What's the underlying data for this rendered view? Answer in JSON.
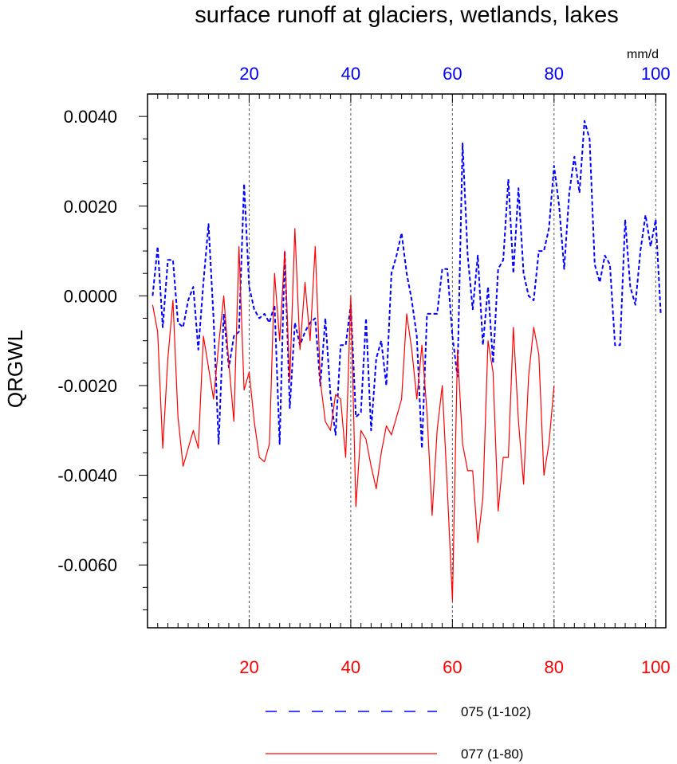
{
  "chart_data": {
    "type": "line",
    "title": "surface runoff at glaciers, wetlands, lakes",
    "ylabel": "QRGWL",
    "units": "mm/d",
    "ylim": [
      -0.0074,
      0.0045
    ],
    "xlim": [
      0,
      102
    ],
    "y_ticks": [
      "0.0040",
      "0.0020",
      "0.0000",
      "-0.0020",
      "-0.0040",
      "-0.0060"
    ],
    "y_tick_values": [
      0.004,
      0.002,
      0.0,
      -0.002,
      -0.004,
      -0.006
    ],
    "x_ticks_top": [
      "20",
      "40",
      "60",
      "80",
      "100"
    ],
    "x_tick_values_top": [
      20,
      40,
      60,
      80,
      100
    ],
    "x_ticks_bottom": [
      "20",
      "40",
      "60",
      "80",
      "100"
    ],
    "x_tick_values_bottom": [
      20,
      40,
      60,
      80,
      100
    ],
    "grid": "vertical dotted lines at major x ticks",
    "legend_position": "bottom",
    "top_axis_color": "#0000ff",
    "bottom_axis_color": "#ff0000",
    "series": [
      {
        "name": "075 (1-102)",
        "color": "#0000ff",
        "style": "dashed",
        "values": [
          0.0,
          0.0011,
          -0.0007,
          0.0008,
          0.0008,
          -0.0006,
          -0.0007,
          -0.0001,
          0.0002,
          -0.0012,
          0.0003,
          0.0016,
          -0.0005,
          -0.0033,
          -0.0004,
          -0.0016,
          -0.0009,
          -0.0008,
          0.0025,
          0.0002,
          -0.0003,
          -0.0005,
          -0.0004,
          -0.0006,
          -0.0002,
          -0.0033,
          0.001,
          -0.0025,
          -0.0006,
          -0.0011,
          -0.0008,
          -0.0006,
          -0.0005,
          -0.002,
          -0.0005,
          -0.0022,
          -0.0031,
          -0.0011,
          -0.0011,
          -0.0002,
          -0.0027,
          -0.0026,
          -0.0005,
          -0.003,
          -0.0014,
          -0.001,
          -0.002,
          0.0005,
          0.0009,
          0.0014,
          0.0005,
          -0.0001,
          -0.0009,
          -0.0034,
          -0.0004,
          -0.0004,
          -0.0004,
          0.0006,
          0.0006,
          -0.0009,
          -0.0018,
          0.0034,
          0.0009,
          -0.0003,
          0.0009,
          -0.0011,
          0.0002,
          -0.0015,
          0.0006,
          0.0008,
          0.0026,
          0.0005,
          0.0024,
          0.0005,
          0.0,
          -0.0001,
          0.001,
          0.001,
          0.0015,
          0.0029,
          0.002,
          0.0006,
          0.0023,
          0.0031,
          0.0023,
          0.0039,
          0.0035,
          0.0007,
          0.0003,
          0.0009,
          0.0007,
          -0.0011,
          -0.0011,
          0.0017,
          0.0002,
          -0.0002,
          0.001,
          0.0018,
          0.0011,
          0.0017,
          -0.0004
        ]
      },
      {
        "name": "077 (1-80)",
        "color": "#ff0000",
        "style": "solid",
        "values": [
          -0.0002,
          -0.0008,
          -0.0034,
          -0.0014,
          -0.0001,
          -0.0027,
          -0.0038,
          -0.0034,
          -0.003,
          -0.0034,
          -0.0009,
          -0.0016,
          -0.0023,
          -0.0011,
          0.0,
          -0.0015,
          -0.0028,
          0.0011,
          -0.0021,
          -0.0017,
          -0.0028,
          -0.0036,
          -0.0037,
          -0.0033,
          0.0005,
          -0.001,
          0.001,
          -0.0019,
          0.0015,
          -0.0012,
          0.0003,
          -0.001,
          0.0011,
          -0.0019,
          -0.0028,
          -0.003,
          -0.0022,
          -0.0023,
          -0.0036,
          0.0,
          -0.0047,
          -0.003,
          -0.0032,
          -0.0038,
          -0.0043,
          -0.0035,
          -0.0029,
          -0.0031,
          -0.0027,
          -0.0023,
          -0.0004,
          -0.0012,
          -0.0023,
          -0.0011,
          -0.0026,
          -0.0049,
          -0.003,
          -0.002,
          -0.0043,
          -0.0068,
          -0.0012,
          -0.0033,
          -0.0039,
          -0.0039,
          -0.0055,
          -0.0045,
          -0.001,
          -0.0017,
          -0.0048,
          -0.0036,
          -0.0036,
          -0.0007,
          -0.0028,
          -0.0042,
          -0.0018,
          -0.0007,
          -0.0013,
          -0.004,
          -0.0033,
          -0.002
        ]
      }
    ]
  }
}
